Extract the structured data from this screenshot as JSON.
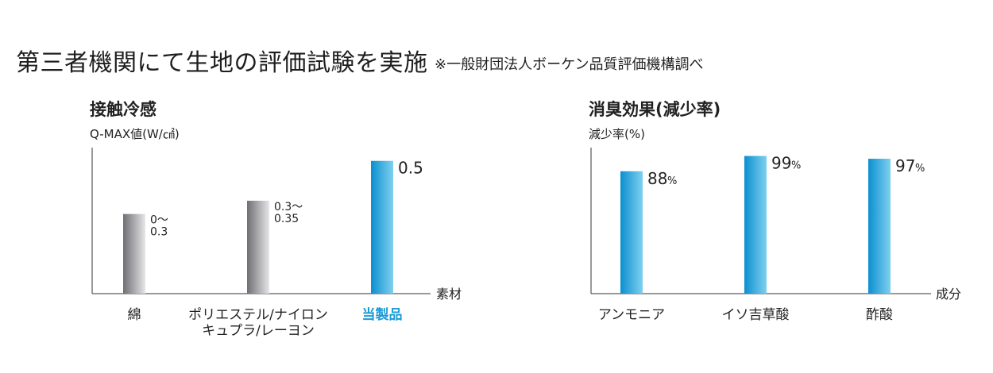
{
  "page": {
    "title": "第三者機関にて生地の評価試験を実施",
    "note": "※一般財団法人ボーケン品質評価機構調べ"
  },
  "colors": {
    "gray_bar_dark": "#6f6f74",
    "gray_bar_light": "#e6e6e8",
    "blue_bar_dark": "#0b8fd0",
    "blue_bar_light": "#7fd0ef",
    "highlight_text": "#1a9ad6",
    "axis": "#333333",
    "text": "#222222"
  },
  "chart_data": [
    {
      "type": "bar",
      "title": "接触冷感",
      "ylabel": "Q-MAX値(W/㎠)",
      "xlabel": "素材",
      "ylim": [
        0,
        0.55
      ],
      "categories": [
        [
          "綿"
        ],
        [
          "ポリエステル/ナイロン",
          "キュプラ/レーヨン"
        ],
        [
          "当製品"
        ]
      ],
      "values": [
        0.3,
        0.35,
        0.5
      ],
      "value_labels": [
        [
          "0〜",
          "0.3"
        ],
        [
          "0.3〜",
          "0.35"
        ],
        [
          "0.5"
        ]
      ],
      "bar_styles": [
        "gray",
        "gray",
        "blue"
      ],
      "highlight": [
        false,
        false,
        true
      ]
    },
    {
      "type": "bar",
      "title": "消臭効果(減少率)",
      "ylabel": "減少率(%)",
      "xlabel": "成分",
      "ylim": [
        0,
        105
      ],
      "categories": [
        [
          "アンモニア"
        ],
        [
          "イソ吉草酸"
        ],
        [
          "酢酸"
        ]
      ],
      "values": [
        88,
        99,
        97
      ],
      "value_labels": [
        [
          "88"
        ],
        [
          "99"
        ],
        [
          "97"
        ]
      ],
      "value_unit": "%",
      "bar_styles": [
        "blue",
        "blue",
        "blue"
      ],
      "highlight": [
        false,
        false,
        false
      ]
    }
  ]
}
